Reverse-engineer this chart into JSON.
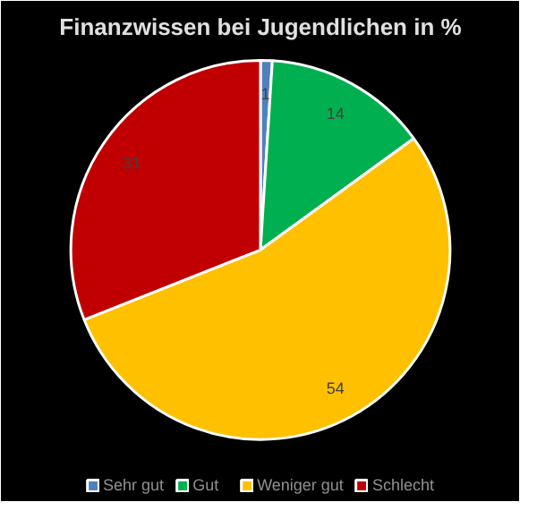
{
  "chart_data": {
    "type": "pie",
    "title": "Finanzwissen bei Jugendlichen in %",
    "categories": [
      "Sehr gut",
      "Gut",
      "Weniger gut",
      "Schlecht"
    ],
    "values": [
      1,
      14,
      54,
      31
    ],
    "colors": [
      "#4f81bd",
      "#00b050",
      "#ffc000",
      "#c00000"
    ],
    "data_labels": true,
    "legend": "bottom"
  }
}
